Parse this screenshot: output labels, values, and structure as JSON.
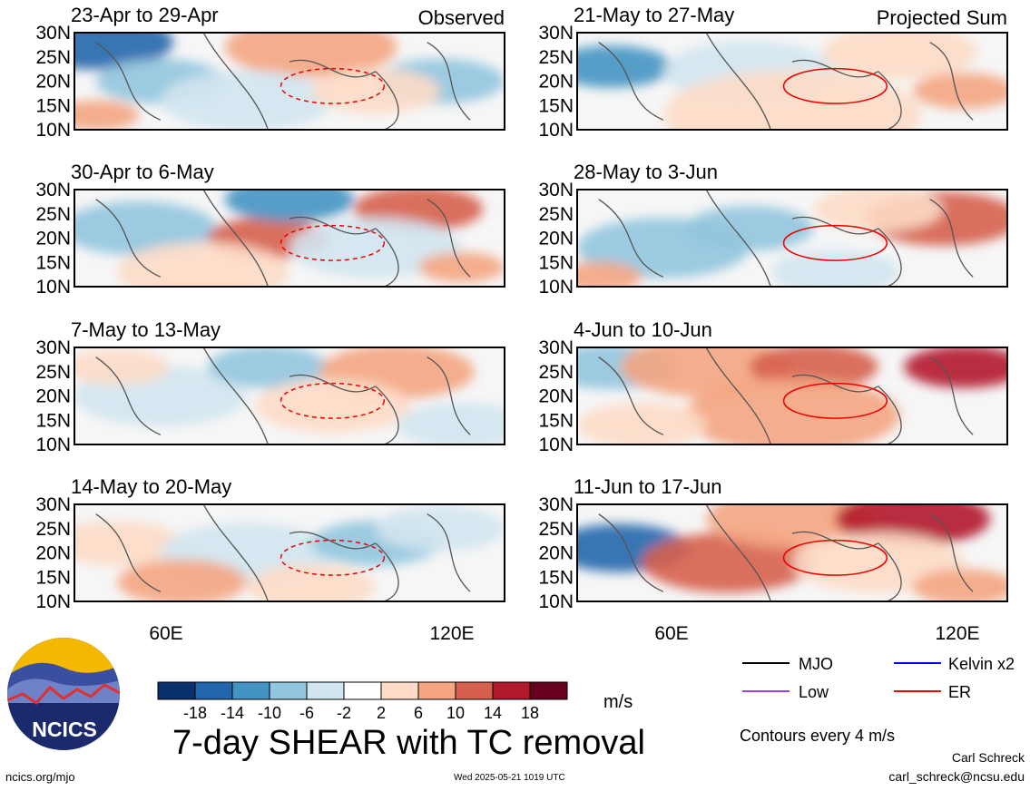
{
  "panels_left": [
    {
      "date_range": "23-Apr to 29-Apr",
      "tag": "Observed"
    },
    {
      "date_range": "30-Apr to 6-May",
      "tag": ""
    },
    {
      "date_range": "7-May to 13-May",
      "tag": ""
    },
    {
      "date_range": "14-May to 20-May",
      "tag": ""
    }
  ],
  "panels_right": [
    {
      "date_range": "21-May to 27-May",
      "tag": "Projected Sum"
    },
    {
      "date_range": "28-May to 3-Jun",
      "tag": ""
    },
    {
      "date_range": "4-Jun to 10-Jun",
      "tag": ""
    },
    {
      "date_range": "11-Jun to 17-Jun",
      "tag": ""
    }
  ],
  "lat_labels": [
    "30N",
    "25N",
    "20N",
    "15N",
    "10N"
  ],
  "lon_labels": [
    "60E",
    "120E"
  ],
  "colorbar": {
    "colors": [
      "#08306b",
      "#2166ac",
      "#4393c3",
      "#92c5de",
      "#d1e5f0",
      "#ffffff",
      "#fddbc7",
      "#f4a582",
      "#d6604d",
      "#b2182b",
      "#67001f"
    ],
    "tick_labels": [
      "-18",
      "-14",
      "-10",
      "-6",
      "-2",
      "2",
      "6",
      "10",
      "14",
      "18"
    ],
    "units": "m/s"
  },
  "legend": {
    "items": [
      {
        "label": "MJO",
        "color": "#000000"
      },
      {
        "label": "Kelvin x2",
        "color": "#0000ff"
      },
      {
        "label": "Low",
        "color": "#a040ff"
      },
      {
        "label": "ER",
        "color": "#ff0000"
      }
    ],
    "note": "Contours every 4 m/s"
  },
  "logo_text": "NCICS",
  "title": "7-day SHEAR with TC removal",
  "footer": {
    "left": "ncics.org/mjo",
    "middle": "Wed 2025-05-21 1019 UTC",
    "author": "Carl Schreck",
    "email": "carl_schreck@ncsu.edu"
  }
}
